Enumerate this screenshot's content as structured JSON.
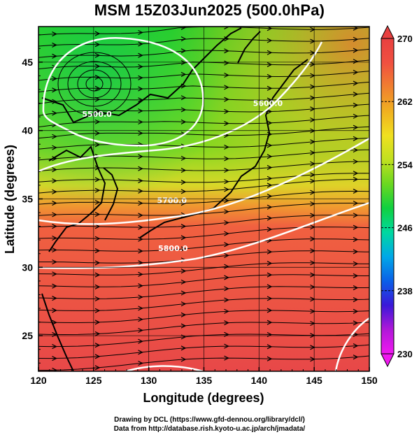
{
  "title": "MSM 15Z03Jun2025 (500.0hPa)",
  "credits": {
    "line1": "Drawing by DCL (https://www.gfd-dennou.org/library/dcl/)",
    "line2": "Data from http://database.rish.kyoto-u.ac.jp/arch/jmadata/"
  },
  "map": {
    "xlabel": "Longitude (degrees)",
    "ylabel": "Latitude  (degrees)",
    "xlim": [
      120,
      150
    ],
    "ylim": [
      22.4,
      47.6
    ],
    "x_ticks": [
      "120",
      "125",
      "130",
      "135",
      "140",
      "145",
      "150"
    ],
    "y_ticks": [
      "25",
      "30",
      "35",
      "40",
      "45"
    ],
    "grid": true,
    "low_center_lon_lat": [
      126,
      44.3
    ]
  },
  "colorbar": {
    "min": 230,
    "max": 270,
    "labels": [
      "270",
      "262",
      "254",
      "246",
      "238",
      "230"
    ],
    "colors": [
      "#f018f0",
      "#b018d8",
      "#3a18d8",
      "#0a60e8",
      "#00a8e8",
      "#00d8a0",
      "#10d040",
      "#6ad820",
      "#c0e020",
      "#f0e020",
      "#f0b020",
      "#f08030",
      "#f05040",
      "#e84040"
    ]
  },
  "contours": [
    {
      "label": "5500.0",
      "lon": 125.3,
      "lat": 41.0
    },
    {
      "label": "5700.0",
      "lon": 132.1,
      "lat": 34.7
    },
    {
      "label": "5800.0",
      "lon": 132.2,
      "lat": 31.2
    },
    {
      "label": "5600.0",
      "lon": 140.8,
      "lat": 41.8
    }
  ],
  "chart_data": {
    "type": "heatmap",
    "title": "MSM 15Z03Jun2025 (500.0hPa)",
    "xlabel": "Longitude (degrees)",
    "ylabel": "Latitude  (degrees)",
    "xlim": [
      120,
      150
    ],
    "ylim": [
      22.4,
      47.6
    ],
    "value_range": [
      230,
      270
    ],
    "geopotential_contours": [
      5500.0,
      5600.0,
      5700.0,
      5800.0
    ]
  }
}
